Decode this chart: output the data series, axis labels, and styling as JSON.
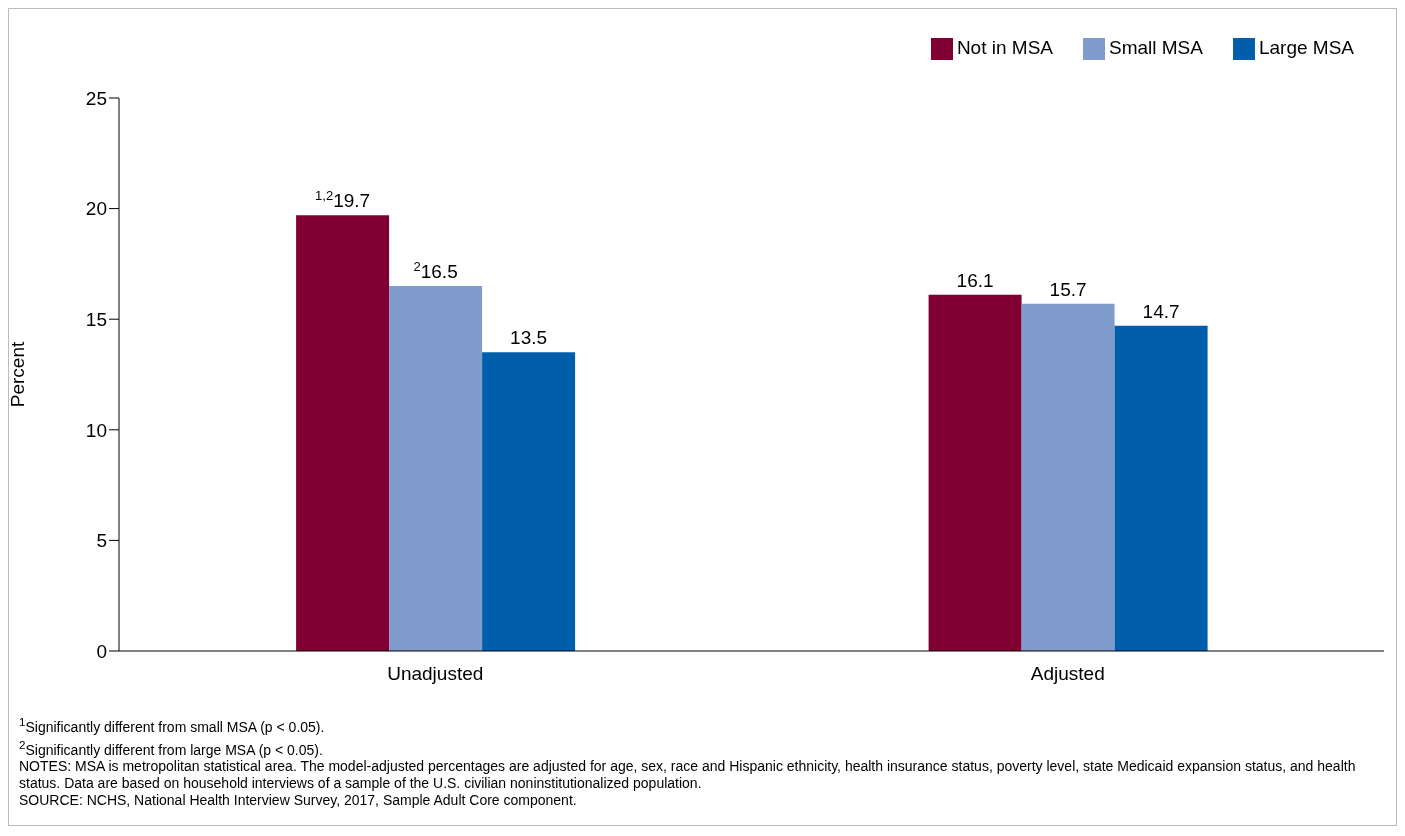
{
  "chart_data": {
    "type": "bar",
    "ylabel": "Percent",
    "categories": [
      "Unadjusted",
      "Adjusted"
    ],
    "series": [
      {
        "name": "Not in MSA",
        "color": "#800033",
        "values": [
          19.7,
          16.1
        ],
        "value_labels": [
          "$^{1,2}$19.7",
          "16.1"
        ]
      },
      {
        "name": "Small MSA",
        "color": "#7f9ccc",
        "values": [
          16.5,
          15.7
        ],
        "value_labels": [
          "$^{2}$16.5",
          "15.7"
        ]
      },
      {
        "name": "Large MSA",
        "color": "#005eaa",
        "values": [
          13.5,
          14.7
        ],
        "value_labels": [
          "13.5",
          "14.7"
        ]
      }
    ],
    "ylim": [
      0,
      25
    ],
    "yticks": [
      0,
      5,
      10,
      15,
      20,
      25
    ],
    "grid": false,
    "legend": "top right",
    "annotations": [
      "$^{1}$Significantly different from small MSA (p < 0.05).",
      "$^{2}$Significantly different from large MSA (p < 0.05).",
      "NOTES: MSA is metropolitan statistical area. The model-adjusted percentages are adjusted for age, sex, race and Hispanic ethnicity, health insurance status, poverty level, state Medicaid expansion status, and health status. Data are based on household interviews of a sample of the U.S. civilian noninstitutionalized population.",
      "SOURCE: NCHS, National Health Interview Survey, 2017, Sample Adult Core component."
    ]
  }
}
